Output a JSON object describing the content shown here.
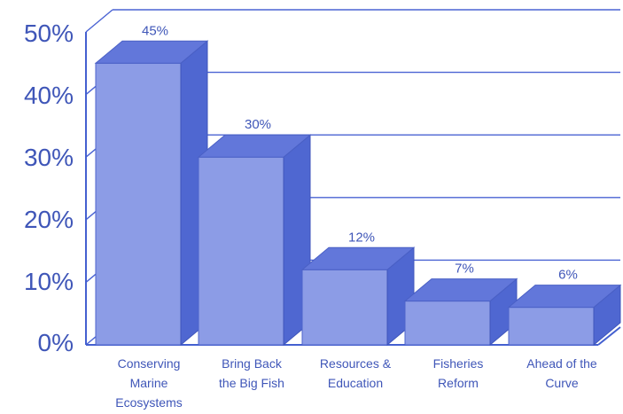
{
  "chart_data": {
    "type": "bar",
    "categories": [
      [
        "Conserving",
        "Marine",
        "Ecosystems"
      ],
      [
        "Bring Back",
        "the Big Fish"
      ],
      [
        "Resources &",
        "Education"
      ],
      [
        "Fisheries",
        "Reform"
      ],
      [
        "Ahead of the",
        "Curve"
      ]
    ],
    "values": [
      45,
      30,
      12,
      7,
      6
    ],
    "value_labels": [
      "45%",
      "30%",
      "12%",
      "7%",
      "6%"
    ],
    "y_tick_labels": [
      "0%",
      "10%",
      "20%",
      "30%",
      "40%",
      "50%"
    ],
    "ylim": [
      0,
      50
    ],
    "grid": true,
    "three_d": true,
    "colors": {
      "bar_front": "#8c9ce6",
      "bar_side": "#4f67d1",
      "bar_top": "#6277da",
      "axis": "#4460d0",
      "grid": "#4a63d3",
      "text": "#3f56b8"
    }
  }
}
